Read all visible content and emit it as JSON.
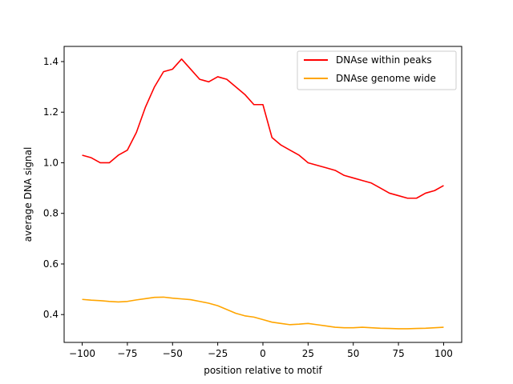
{
  "chart_data": {
    "type": "line",
    "title": "",
    "xlabel": "position relative to motif",
    "ylabel": "average DNA signal",
    "xlim": [
      -110,
      110
    ],
    "ylim": [
      0.29,
      1.46
    ],
    "xticks": [
      -100,
      -75,
      -50,
      -25,
      0,
      25,
      50,
      75,
      100
    ],
    "xtick_labels": [
      "−100",
      "−75",
      "−50",
      "−25",
      "0",
      "25",
      "50",
      "75",
      "100"
    ],
    "yticks": [
      0.4,
      0.6,
      0.8,
      1.0,
      1.2,
      1.4
    ],
    "ytick_labels": [
      "0.4",
      "0.6",
      "0.8",
      "1.0",
      "1.2",
      "1.4"
    ],
    "grid": false,
    "legend_position": "top-right",
    "x": [
      -100,
      -95,
      -90,
      -85,
      -80,
      -75,
      -70,
      -65,
      -60,
      -55,
      -50,
      -45,
      -40,
      -35,
      -30,
      -25,
      -20,
      -15,
      -10,
      -5,
      0,
      5,
      10,
      15,
      20,
      25,
      30,
      35,
      40,
      45,
      50,
      55,
      60,
      65,
      70,
      75,
      80,
      85,
      90,
      95,
      100
    ],
    "series": [
      {
        "name": "DNAse within peaks",
        "color": "#ff0000",
        "values": [
          1.03,
          1.02,
          1.0,
          1.0,
          1.03,
          1.05,
          1.12,
          1.22,
          1.3,
          1.36,
          1.37,
          1.41,
          1.37,
          1.33,
          1.32,
          1.34,
          1.33,
          1.3,
          1.27,
          1.23,
          1.23,
          1.1,
          1.07,
          1.05,
          1.03,
          1.0,
          0.99,
          0.98,
          0.97,
          0.95,
          0.94,
          0.93,
          0.92,
          0.9,
          0.88,
          0.87,
          0.86,
          0.86,
          0.88,
          0.89,
          0.91
        ]
      },
      {
        "name": "DNAse genome wide",
        "color": "#ffa500",
        "values": [
          0.46,
          0.457,
          0.455,
          0.452,
          0.45,
          0.452,
          0.458,
          0.463,
          0.468,
          0.469,
          0.465,
          0.462,
          0.459,
          0.452,
          0.445,
          0.435,
          0.42,
          0.405,
          0.395,
          0.39,
          0.38,
          0.37,
          0.365,
          0.36,
          0.362,
          0.365,
          0.36,
          0.355,
          0.35,
          0.348,
          0.348,
          0.35,
          0.348,
          0.346,
          0.345,
          0.344,
          0.344,
          0.345,
          0.346,
          0.348,
          0.35
        ]
      }
    ]
  }
}
